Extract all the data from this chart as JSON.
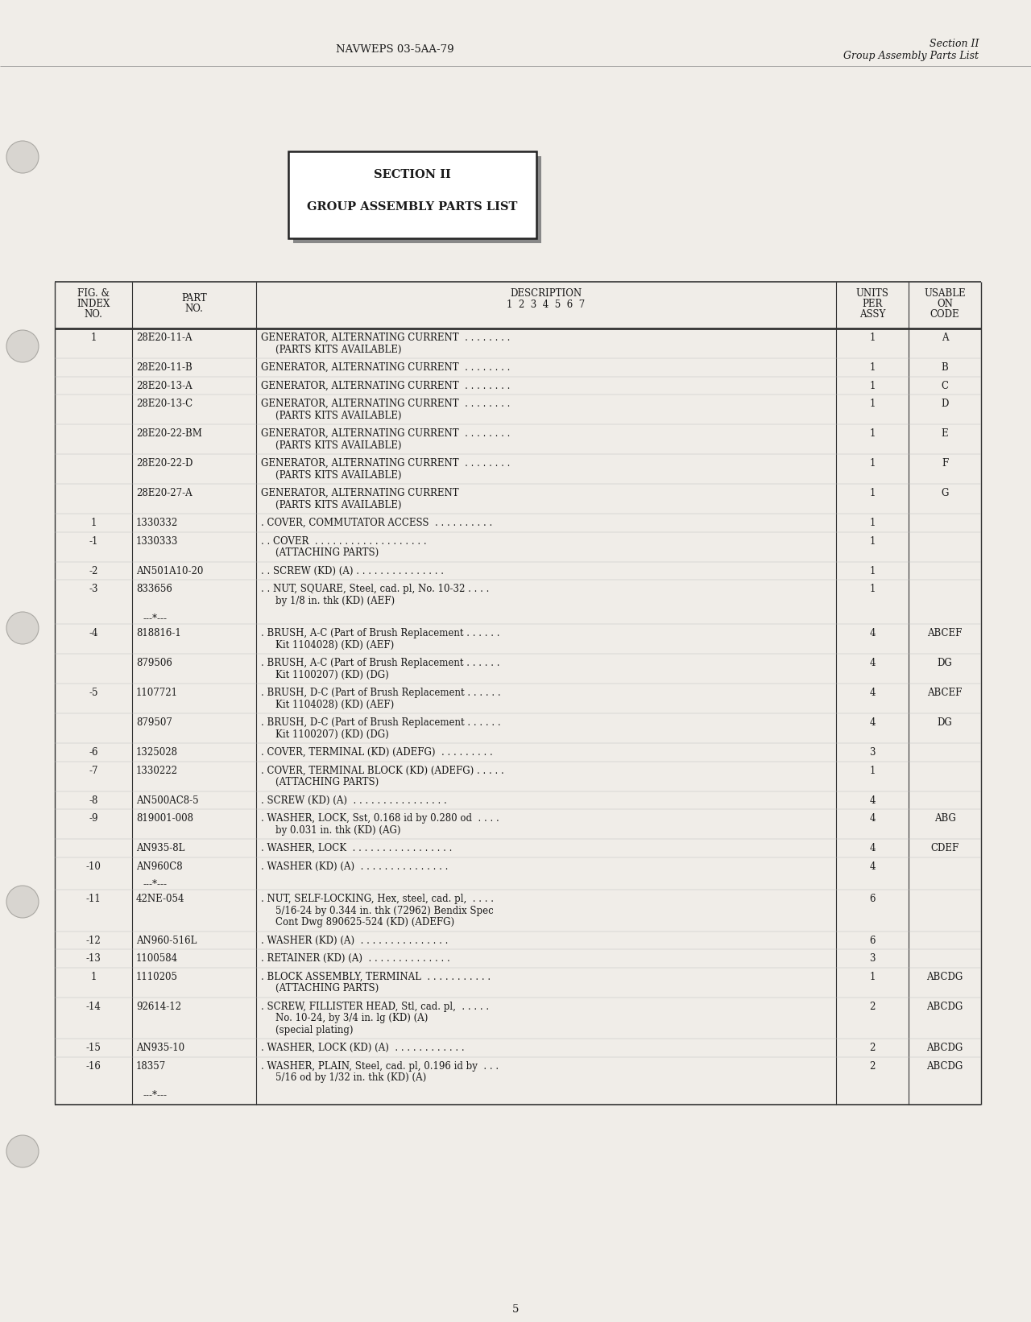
{
  "bg_color": "#f0ede8",
  "page_bg": "#f0ede8",
  "page_number": "5",
  "header_left": "NAVWEPS 03-5AA-79",
  "header_right_line1": "Section II",
  "header_right_line2": "Group Assembly Parts List",
  "section_box_line1": "SECTION II",
  "section_box_line2": "GROUP ASSEMBLY PARTS LIST",
  "rows": [
    {
      "fig": "1",
      "part": "28E20-11-A",
      "lines": [
        "GENERATOR, ALTERNATING CURRENT  . . . . . . . .",
        "(PARTS KITS AVAILABLE)"
      ],
      "units": "1",
      "code": "A"
    },
    {
      "fig": "",
      "part": "28E20-11-B",
      "lines": [
        "GENERATOR, ALTERNATING CURRENT  . . . . . . . ."
      ],
      "units": "1",
      "code": "B"
    },
    {
      "fig": "",
      "part": "28E20-13-A",
      "lines": [
        "GENERATOR, ALTERNATING CURRENT  . . . . . . . ."
      ],
      "units": "1",
      "code": "C"
    },
    {
      "fig": "",
      "part": "28E20-13-C",
      "lines": [
        "GENERATOR, ALTERNATING CURRENT  . . . . . . . .",
        "(PARTS KITS AVAILABLE)"
      ],
      "units": "1",
      "code": "D"
    },
    {
      "fig": "",
      "part": "28E20-22-BM",
      "lines": [
        "GENERATOR, ALTERNATING CURRENT  . . . . . . . .",
        "(PARTS KITS AVAILABLE)"
      ],
      "units": "1",
      "code": "E"
    },
    {
      "fig": "",
      "part": "28E20-22-D",
      "lines": [
        "GENERATOR, ALTERNATING CURRENT  . . . . . . . .",
        "(PARTS KITS AVAILABLE)"
      ],
      "units": "1",
      "code": "F"
    },
    {
      "fig": "",
      "part": "28E20-27-A",
      "lines": [
        "GENERATOR, ALTERNATING CURRENT",
        "(PARTS KITS AVAILABLE)"
      ],
      "units": "1",
      "code": "G"
    },
    {
      "fig": "1",
      "part": "1330332",
      "lines": [
        ". COVER, COMMUTATOR ACCESS  . . . . . . . . . ."
      ],
      "units": "1",
      "code": ""
    },
    {
      "fig": "-1",
      "part": "1330333",
      "lines": [
        ". . COVER  . . . . . . . . . . . . . . . . . . .",
        "(ATTACHING PARTS)"
      ],
      "units": "1",
      "code": ""
    },
    {
      "fig": "-2",
      "part": "AN501A10-20",
      "lines": [
        ". . SCREW (KD) (A) . . . . . . . . . . . . . . ."
      ],
      "units": "1",
      "code": ""
    },
    {
      "fig": "-3",
      "part": "833656",
      "lines": [
        ". . NUT, SQUARE, Steel, cad. pl, No. 10-32 . . . .",
        "by 1/8 in. thk (KD) (AEF)"
      ],
      "units": "1",
      "code": ""
    },
    {
      "fig": "---*---",
      "part": "",
      "lines": [
        "---*---"
      ],
      "units": "",
      "code": ""
    },
    {
      "fig": "-4",
      "part": "818816-1",
      "lines": [
        ". BRUSH, A-C (Part of Brush Replacement . . . . . .",
        "Kit 1104028) (KD) (AEF)"
      ],
      "units": "4",
      "code": "ABCEF"
    },
    {
      "fig": "",
      "part": "879506",
      "lines": [
        ". BRUSH, A-C (Part of Brush Replacement . . . . . .",
        "Kit 1100207) (KD) (DG)"
      ],
      "units": "4",
      "code": "DG"
    },
    {
      "fig": "-5",
      "part": "1107721",
      "lines": [
        ". BRUSH, D-C (Part of Brush Replacement . . . . . .",
        "Kit 1104028) (KD) (AEF)"
      ],
      "units": "4",
      "code": "ABCEF"
    },
    {
      "fig": "",
      "part": "879507",
      "lines": [
        ". BRUSH, D-C (Part of Brush Replacement . . . . . .",
        "Kit 1100207) (KD) (DG)"
      ],
      "units": "4",
      "code": "DG"
    },
    {
      "fig": "-6",
      "part": "1325028",
      "lines": [
        ". COVER, TERMINAL (KD) (ADEFG)  . . . . . . . . ."
      ],
      "units": "3",
      "code": ""
    },
    {
      "fig": "-7",
      "part": "1330222",
      "lines": [
        ". COVER, TERMINAL BLOCK (KD) (ADEFG) . . . . .",
        "(ATTACHING PARTS)"
      ],
      "units": "1",
      "code": ""
    },
    {
      "fig": "-8",
      "part": "AN500AC8-5",
      "lines": [
        ". SCREW (KD) (A)  . . . . . . . . . . . . . . . ."
      ],
      "units": "4",
      "code": ""
    },
    {
      "fig": "-9",
      "part": "819001-008",
      "lines": [
        ". WASHER, LOCK, Sst, 0.168 id by 0.280 od  . . . .",
        "by 0.031 in. thk (KD) (AG)"
      ],
      "units": "4",
      "code": "ABG"
    },
    {
      "fig": "",
      "part": "AN935-8L",
      "lines": [
        ". WASHER, LOCK  . . . . . . . . . . . . . . . . ."
      ],
      "units": "4",
      "code": "CDEF"
    },
    {
      "fig": "-10",
      "part": "AN960C8",
      "lines": [
        ". WASHER (KD) (A)  . . . . . . . . . . . . . . ."
      ],
      "units": "4",
      "code": ""
    },
    {
      "fig": "---*---",
      "part": "",
      "lines": [
        "---*---"
      ],
      "units": "",
      "code": ""
    },
    {
      "fig": "-11",
      "part": "42NE-054",
      "lines": [
        ". NUT, SELF-LOCKING, Hex, steel, cad. pl,  . . . .",
        "5/16-24 by 0.344 in. thk (72962) Bendix Spec",
        "Cont Dwg 890625-524 (KD) (ADEFG)"
      ],
      "units": "6",
      "code": ""
    },
    {
      "fig": "-12",
      "part": "AN960-516L",
      "lines": [
        ". WASHER (KD) (A)  . . . . . . . . . . . . . . ."
      ],
      "units": "6",
      "code": ""
    },
    {
      "fig": "-13",
      "part": "1100584",
      "lines": [
        ". RETAINER (KD) (A)  . . . . . . . . . . . . . ."
      ],
      "units": "3",
      "code": ""
    },
    {
      "fig": "1",
      "part": "1110205",
      "lines": [
        ". BLOCK ASSEMBLY, TERMINAL  . . . . . . . . . . .",
        "(ATTACHING PARTS)"
      ],
      "units": "1",
      "code": "ABCDG"
    },
    {
      "fig": "-14",
      "part": "92614-12",
      "lines": [
        ". SCREW, FILLISTER HEAD, Stl, cad. pl,  . . . . .",
        "No. 10-24, by 3/4 in. lg (KD) (A)",
        "(special plating)"
      ],
      "units": "2",
      "code": "ABCDG"
    },
    {
      "fig": "-15",
      "part": "AN935-10",
      "lines": [
        ". WASHER, LOCK (KD) (A)  . . . . . . . . . . . ."
      ],
      "units": "2",
      "code": "ABCDG"
    },
    {
      "fig": "-16",
      "part": "18357",
      "lines": [
        ". WASHER, PLAIN, Steel, cad. pl, 0.196 id by  . . .",
        "5/16 od by 1/32 in. thk (KD) (A)"
      ],
      "units": "2",
      "code": "ABCDG"
    },
    {
      "fig": "---*---",
      "part": "",
      "lines": [
        "---*---"
      ],
      "units": "",
      "code": ""
    }
  ]
}
